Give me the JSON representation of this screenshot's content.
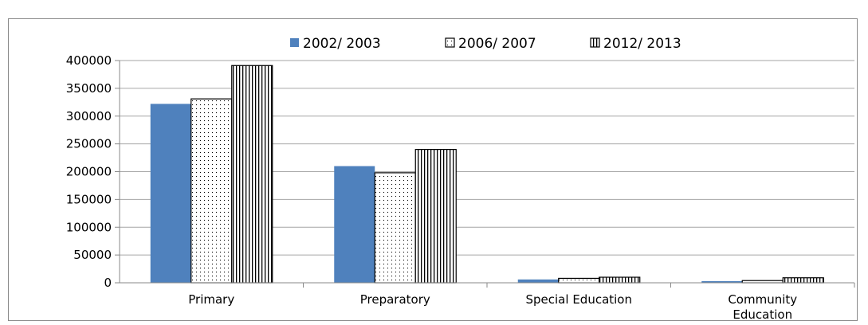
{
  "chart_data": {
    "type": "bar",
    "categories": [
      [
        "Primary"
      ],
      [
        "Preparatory"
      ],
      [
        "Special Education"
      ],
      [
        "Community",
        "Education"
      ]
    ],
    "series": [
      {
        "name": "2002/ 2003",
        "values": [
          322000,
          210000,
          6000,
          3000
        ],
        "fill": "#4f81bd",
        "pattern": "solid"
      },
      {
        "name": "2006/ 2007",
        "values": [
          331000,
          198000,
          8000,
          4000
        ],
        "fill": "#ffffff",
        "pattern": "dots"
      },
      {
        "name": "2012/ 2013",
        "values": [
          391000,
          240000,
          10000,
          9000
        ],
        "fill": "#ffffff",
        "pattern": "vertical-lines"
      }
    ],
    "ylim": [
      0,
      400000
    ],
    "yticks": [
      "0",
      "50000",
      "100000",
      "150000",
      "200000",
      "250000",
      "300000",
      "350000",
      "400000"
    ],
    "grid": true,
    "legend_position": "top",
    "colors": {
      "gridline": "#a6a6a6",
      "axis": "#8a8a8a",
      "bar_outline": "#000000"
    }
  }
}
